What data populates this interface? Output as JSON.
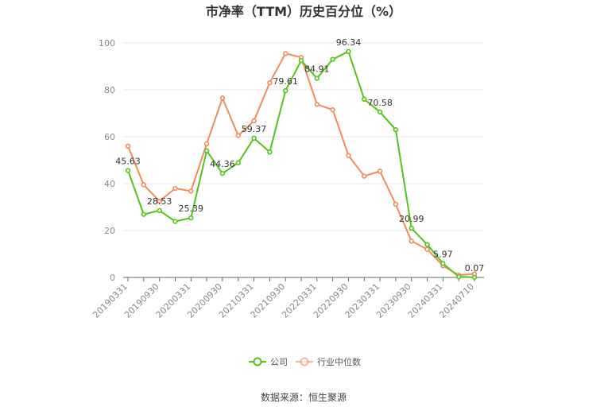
{
  "chart_data": {
    "type": "line",
    "title": "市净率（TTM）历史百分位（%）",
    "x": [
      "20190331",
      "20190630",
      "20190930",
      "20191231",
      "20200331",
      "20200630",
      "20200930",
      "20201231",
      "20210331",
      "20210630",
      "20210930",
      "20211231",
      "20220331",
      "20220630",
      "20220930",
      "20221231",
      "20230331",
      "20230630",
      "20230930",
      "20231231",
      "20240331",
      "20240630",
      "20240710"
    ],
    "x_tick_labels": [
      "20190331",
      "20190930",
      "20200331",
      "20200930",
      "20210331",
      "20210930",
      "20220331",
      "20220930",
      "20230331",
      "20230930",
      "20240331",
      "20240710"
    ],
    "ylim": [
      0,
      100
    ],
    "y_ticks": [
      0,
      20,
      40,
      60,
      80,
      100
    ],
    "grid": true,
    "legend_position": "bottom",
    "series": [
      {
        "name": "公司",
        "color": "#52c41a",
        "values": [
          45.63,
          26.9,
          28.53,
          23.9,
          25.39,
          54.0,
          44.36,
          48.9,
          59.37,
          53.5,
          79.61,
          92.5,
          84.91,
          93.0,
          96.34,
          76.0,
          70.58,
          63.0,
          20.99,
          14.0,
          5.97,
          0.3,
          0.07
        ],
        "labels": {
          "0": "45.63",
          "2": "28.53",
          "4": "25.39",
          "6": "44.36",
          "8": "59.37",
          "10": "79.61",
          "12": "84.91",
          "14": "96.34",
          "16": "70.58",
          "18": "20.99",
          "20": "5.97",
          "22": "0.07"
        }
      },
      {
        "name": "行业中位数",
        "color": "#f08c5a",
        "values": [
          56.0,
          39.5,
          32.5,
          38.0,
          36.8,
          57.0,
          76.5,
          60.5,
          66.8,
          83.0,
          95.5,
          93.8,
          73.8,
          71.5,
          52.0,
          43.2,
          45.3,
          31.2,
          15.5,
          12.0,
          5.0,
          1.0,
          1.5
        ]
      }
    ]
  },
  "source": "数据来源：恒生聚源"
}
